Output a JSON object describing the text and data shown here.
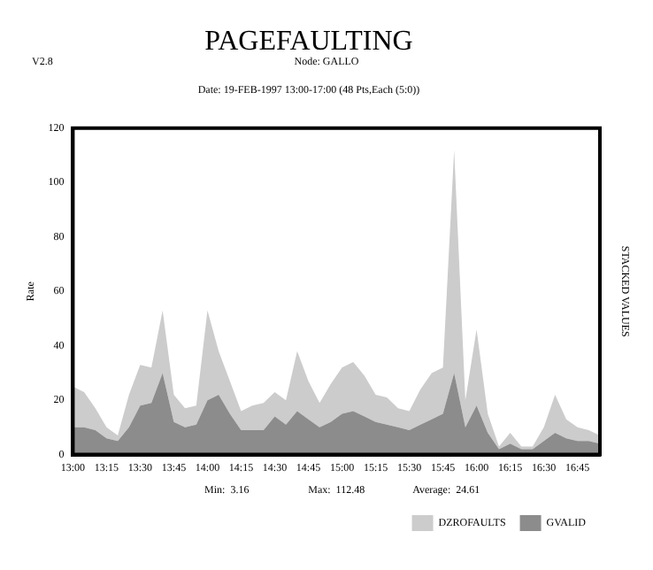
{
  "chart_data": {
    "type": "area",
    "title": "PAGEFAULTING",
    "subtitle": "Date: 19-FEB-1997 13:00-17:00 (48 Pts,Each (5:0))",
    "annotations": [
      "V2.8",
      "Node: GALLO",
      "Min:  3.16",
      "Max:  112.48",
      "Average:  24.61"
    ],
    "ylabel": "Rate",
    "y2label": "STACKED VALUES",
    "stacked": true,
    "x": [
      13,
      13.0833,
      13.1667,
      13.25,
      13.3333,
      13.4167,
      13.5,
      13.5833,
      13.6667,
      13.75,
      13.8333,
      13.9167,
      14,
      14.0833,
      14.1667,
      14.25,
      14.3333,
      14.4167,
      14.5,
      14.5833,
      14.6667,
      14.75,
      14.8333,
      14.9167,
      15,
      15.0833,
      15.1667,
      15.25,
      15.3333,
      15.4167,
      15.5,
      15.5833,
      15.6667,
      15.75,
      15.8333,
      15.9167,
      16,
      16.0833,
      16.1667,
      16.25,
      16.3333,
      16.4167,
      16.5,
      16.5833,
      16.6667,
      16.75,
      16.8333,
      16.9167
    ],
    "series": [
      {
        "name": "GVALID",
        "color": "#8c8c8c",
        "values": [
          10,
          10,
          9,
          6,
          5,
          10,
          18,
          19,
          30,
          12,
          10,
          11,
          20,
          22,
          15,
          9,
          9,
          9,
          14,
          11,
          16,
          13,
          10,
          12,
          15,
          16,
          14,
          12,
          11,
          10,
          9,
          11,
          13,
          15,
          30,
          10,
          18,
          8,
          2,
          4,
          2,
          2,
          5,
          8,
          6,
          5,
          5,
          4
        ]
      },
      {
        "name": "DZROFAULTS",
        "color": "#cccccc",
        "values": [
          15,
          13,
          8,
          4,
          2,
          12,
          15,
          13,
          23,
          10,
          7,
          7,
          33,
          16,
          12,
          7,
          9,
          10,
          9,
          9,
          22,
          14,
          9,
          14,
          17,
          18,
          15,
          10,
          10,
          7,
          7,
          13,
          17,
          17,
          82,
          10,
          28,
          7,
          1,
          4,
          1,
          1,
          5,
          14,
          7,
          5,
          4,
          3
        ]
      }
    ],
    "xlim": [
      13,
      16.9167
    ],
    "xticks": [
      {
        "value": 13,
        "label": "13:00"
      },
      {
        "value": 13.25,
        "label": "13:15"
      },
      {
        "value": 13.5,
        "label": "13:30"
      },
      {
        "value": 13.75,
        "label": "13:45"
      },
      {
        "value": 14,
        "label": "14:00"
      },
      {
        "value": 14.25,
        "label": "14:15"
      },
      {
        "value": 14.5,
        "label": "14:30"
      },
      {
        "value": 14.75,
        "label": "14:45"
      },
      {
        "value": 15,
        "label": "15:00"
      },
      {
        "value": 15.25,
        "label": "15:15"
      },
      {
        "value": 15.5,
        "label": "15:30"
      },
      {
        "value": 15.75,
        "label": "15:45"
      },
      {
        "value": 16,
        "label": "16:00"
      },
      {
        "value": 16.25,
        "label": "16:15"
      },
      {
        "value": 16.5,
        "label": "16:30"
      },
      {
        "value": 16.75,
        "label": "16:45"
      }
    ],
    "ylim": [
      0,
      120
    ],
    "yticks": [
      0,
      20,
      40,
      60,
      80,
      100,
      120
    ],
    "grid": false,
    "legend": "bottom right"
  }
}
